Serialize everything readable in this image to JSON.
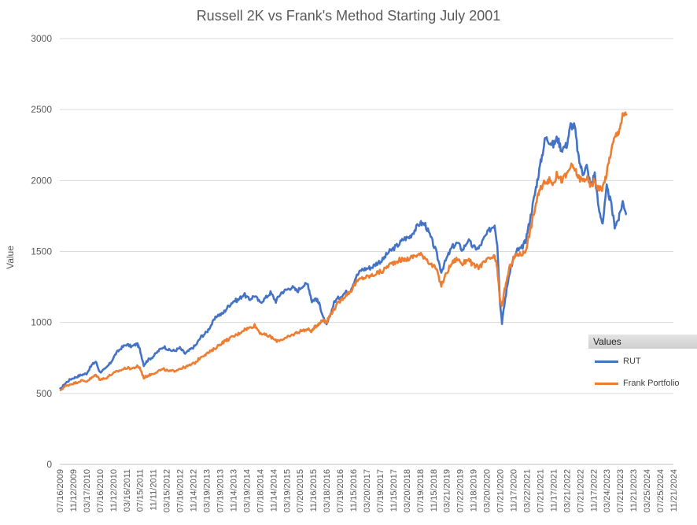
{
  "chart_data": {
    "type": "line",
    "title": "Russell 2K vs Frank's Method Starting July 2001",
    "ylabel": "Value",
    "xlabel": "",
    "ylim": [
      0,
      3000
    ],
    "yticks": [
      0,
      500,
      1000,
      1500,
      2000,
      2500,
      3000
    ],
    "x_ticks": [
      "07/16/2009",
      "11/12/2009",
      "03/17/2010",
      "07/16/2010",
      "11/12/2010",
      "03/16/2011",
      "07/15/2011",
      "11/11/2011",
      "03/15/2012",
      "07/16/2012",
      "11/14/2012",
      "03/19/2013",
      "07/19/2013",
      "11/14/2013",
      "03/19/2014",
      "07/18/2014",
      "11/14/2014",
      "03/19/2015",
      "07/20/2015",
      "11/16/2015",
      "03/18/2016",
      "07/19/2016",
      "11/15/2016",
      "03/20/2017",
      "07/19/2017",
      "11/15/2017",
      "03/20/2018",
      "07/19/2018",
      "11/15/2018",
      "03/21/2019",
      "07/22/2019",
      "11/18/2019",
      "03/20/2020",
      "07/21/2020",
      "11/17/2020",
      "03/22/2021",
      "07/21/2021",
      "11/17/2021",
      "03/21/2022",
      "07/21/2022",
      "11/17/2022",
      "03/24/2023",
      "07/21/2023",
      "11/21/2023",
      "03/25/2024",
      "07/25/2024",
      "11/21/2024"
    ],
    "grid": true,
    "legend_position": "right",
    "legend_title": "Values",
    "series": [
      {
        "name": "RUT",
        "color": "#4472C4",
        "points": [
          [
            0,
            525
          ],
          [
            0.4,
            570
          ],
          [
            0.8,
            600
          ],
          [
            1.2,
            615
          ],
          [
            1.6,
            630
          ],
          [
            2,
            640
          ],
          [
            2.4,
            700
          ],
          [
            2.7,
            725
          ],
          [
            3,
            650
          ],
          [
            3.4,
            670
          ],
          [
            3.8,
            715
          ],
          [
            4.2,
            780
          ],
          [
            4.6,
            820
          ],
          [
            5,
            845
          ],
          [
            5.4,
            830
          ],
          [
            5.8,
            850
          ],
          [
            6,
            810
          ],
          [
            6.3,
            700
          ],
          [
            6.6,
            735
          ],
          [
            7,
            760
          ],
          [
            7.4,
            800
          ],
          [
            7.8,
            830
          ],
          [
            8.2,
            805
          ],
          [
            8.6,
            800
          ],
          [
            9,
            820
          ],
          [
            9.4,
            780
          ],
          [
            9.8,
            810
          ],
          [
            10.2,
            840
          ],
          [
            10.6,
            900
          ],
          [
            11,
            930
          ],
          [
            11.4,
            990
          ],
          [
            11.8,
            1050
          ],
          [
            12.2,
            1060
          ],
          [
            12.6,
            1110
          ],
          [
            13,
            1150
          ],
          [
            13.4,
            1160
          ],
          [
            13.8,
            1200
          ],
          [
            14.2,
            1160
          ],
          [
            14.6,
            1190
          ],
          [
            15,
            1140
          ],
          [
            15.4,
            1170
          ],
          [
            15.8,
            1210
          ],
          [
            16.2,
            1150
          ],
          [
            16.6,
            1210
          ],
          [
            17,
            1230
          ],
          [
            17.4,
            1250
          ],
          [
            17.8,
            1220
          ],
          [
            18.2,
            1260
          ],
          [
            18.6,
            1270
          ],
          [
            18.9,
            1150
          ],
          [
            19.2,
            1170
          ],
          [
            19.5,
            1120
          ],
          [
            19.8,
            1020
          ],
          [
            20,
            980
          ],
          [
            20.3,
            1060
          ],
          [
            20.6,
            1150
          ],
          [
            21,
            1180
          ],
          [
            21.4,
            1210
          ],
          [
            21.8,
            1230
          ],
          [
            22.2,
            1320
          ],
          [
            22.6,
            1370
          ],
          [
            23,
            1380
          ],
          [
            23.4,
            1390
          ],
          [
            23.8,
            1420
          ],
          [
            24.2,
            1440
          ],
          [
            24.6,
            1490
          ],
          [
            25,
            1520
          ],
          [
            25.4,
            1550
          ],
          [
            25.8,
            1590
          ],
          [
            26.2,
            1600
          ],
          [
            26.6,
            1650
          ],
          [
            27,
            1700
          ],
          [
            27.4,
            1690
          ],
          [
            27.8,
            1600
          ],
          [
            28.2,
            1500
          ],
          [
            28.6,
            1360
          ],
          [
            29,
            1450
          ],
          [
            29.4,
            1530
          ],
          [
            29.8,
            1560
          ],
          [
            30.2,
            1510
          ],
          [
            30.6,
            1580
          ],
          [
            31,
            1530
          ],
          [
            31.4,
            1520
          ],
          [
            31.8,
            1590
          ],
          [
            32.2,
            1650
          ],
          [
            32.6,
            1690
          ],
          [
            32.8,
            1550
          ],
          [
            33,
            1150
          ],
          [
            33.15,
            1000
          ],
          [
            33.4,
            1170
          ],
          [
            33.7,
            1350
          ],
          [
            34,
            1440
          ],
          [
            34.3,
            1510
          ],
          [
            34.6,
            1520
          ],
          [
            34.9,
            1570
          ],
          [
            35.2,
            1700
          ],
          [
            35.5,
            1850
          ],
          [
            35.8,
            2000
          ],
          [
            36.1,
            2150
          ],
          [
            36.4,
            2300
          ],
          [
            36.7,
            2280
          ],
          [
            37,
            2250
          ],
          [
            37.3,
            2300
          ],
          [
            37.6,
            2220
          ],
          [
            38,
            2250
          ],
          [
            38.3,
            2390
          ],
          [
            38.6,
            2380
          ],
          [
            38.9,
            2150
          ],
          [
            39.2,
            2050
          ],
          [
            39.5,
            2100
          ],
          [
            39.8,
            1960
          ],
          [
            40.1,
            2050
          ],
          [
            40.4,
            1800
          ],
          [
            40.7,
            1700
          ],
          [
            41,
            1950
          ],
          [
            41.3,
            1850
          ],
          [
            41.6,
            1680
          ],
          [
            41.9,
            1730
          ],
          [
            42.2,
            1850
          ],
          [
            42.5,
            1760
          ]
        ]
      },
      {
        "name": "Frank Portfolio",
        "color": "#ED7D31",
        "points": [
          [
            0,
            520
          ],
          [
            0.4,
            550
          ],
          [
            0.8,
            565
          ],
          [
            1.2,
            575
          ],
          [
            1.6,
            590
          ],
          [
            2,
            585
          ],
          [
            2.4,
            610
          ],
          [
            2.7,
            630
          ],
          [
            3,
            600
          ],
          [
            3.4,
            605
          ],
          [
            3.8,
            630
          ],
          [
            4.2,
            650
          ],
          [
            4.6,
            665
          ],
          [
            5,
            680
          ],
          [
            5.4,
            675
          ],
          [
            5.8,
            690
          ],
          [
            6,
            680
          ],
          [
            6.3,
            610
          ],
          [
            6.6,
            625
          ],
          [
            7,
            640
          ],
          [
            7.4,
            660
          ],
          [
            7.8,
            670
          ],
          [
            8.2,
            655
          ],
          [
            8.6,
            660
          ],
          [
            9,
            675
          ],
          [
            9.4,
            685
          ],
          [
            9.8,
            700
          ],
          [
            10.2,
            720
          ],
          [
            10.6,
            760
          ],
          [
            11,
            780
          ],
          [
            11.4,
            800
          ],
          [
            11.8,
            830
          ],
          [
            12.2,
            860
          ],
          [
            12.6,
            880
          ],
          [
            13,
            900
          ],
          [
            13.4,
            920
          ],
          [
            13.8,
            950
          ],
          [
            14.2,
            960
          ],
          [
            14.6,
            980
          ],
          [
            15,
            930
          ],
          [
            15.4,
            910
          ],
          [
            15.8,
            900
          ],
          [
            16.2,
            870
          ],
          [
            16.6,
            880
          ],
          [
            17,
            890
          ],
          [
            17.4,
            910
          ],
          [
            17.8,
            930
          ],
          [
            18.2,
            945
          ],
          [
            18.6,
            950
          ],
          [
            18.9,
            940
          ],
          [
            19.2,
            975
          ],
          [
            19.5,
            1000
          ],
          [
            19.8,
            1020
          ],
          [
            20,
            1000
          ],
          [
            20.3,
            1060
          ],
          [
            20.6,
            1100
          ],
          [
            21,
            1150
          ],
          [
            21.4,
            1190
          ],
          [
            21.8,
            1220
          ],
          [
            22.2,
            1280
          ],
          [
            22.6,
            1310
          ],
          [
            23,
            1320
          ],
          [
            23.4,
            1330
          ],
          [
            23.8,
            1350
          ],
          [
            24.2,
            1360
          ],
          [
            24.6,
            1400
          ],
          [
            25,
            1420
          ],
          [
            25.4,
            1440
          ],
          [
            25.8,
            1440
          ],
          [
            26.2,
            1450
          ],
          [
            26.6,
            1470
          ],
          [
            27,
            1480
          ],
          [
            27.4,
            1460
          ],
          [
            27.8,
            1410
          ],
          [
            28.2,
            1380
          ],
          [
            28.6,
            1260
          ],
          [
            29,
            1350
          ],
          [
            29.4,
            1420
          ],
          [
            29.8,
            1450
          ],
          [
            30.2,
            1410
          ],
          [
            30.6,
            1450
          ],
          [
            31,
            1400
          ],
          [
            31.4,
            1390
          ],
          [
            31.8,
            1420
          ],
          [
            32.2,
            1450
          ],
          [
            32.6,
            1460
          ],
          [
            32.8,
            1380
          ],
          [
            33,
            1150
          ],
          [
            33.15,
            1120
          ],
          [
            33.4,
            1250
          ],
          [
            33.7,
            1380
          ],
          [
            34,
            1450
          ],
          [
            34.3,
            1480
          ],
          [
            34.6,
            1480
          ],
          [
            34.9,
            1500
          ],
          [
            35.2,
            1620
          ],
          [
            35.5,
            1750
          ],
          [
            35.8,
            1880
          ],
          [
            36.1,
            1950
          ],
          [
            36.4,
            2000
          ],
          [
            36.7,
            2000
          ],
          [
            37,
            1980
          ],
          [
            37.3,
            2050
          ],
          [
            37.6,
            2000
          ],
          [
            38,
            2040
          ],
          [
            38.3,
            2100
          ],
          [
            38.6,
            2080
          ],
          [
            38.9,
            2020
          ],
          [
            39.2,
            2000
          ],
          [
            39.5,
            2020
          ],
          [
            39.8,
            1960
          ],
          [
            40.1,
            2000
          ],
          [
            40.4,
            1940
          ],
          [
            40.7,
            1950
          ],
          [
            41,
            2050
          ],
          [
            41.3,
            2200
          ],
          [
            41.6,
            2300
          ],
          [
            41.9,
            2350
          ],
          [
            42.2,
            2450
          ],
          [
            42.5,
            2470
          ]
        ]
      }
    ]
  }
}
